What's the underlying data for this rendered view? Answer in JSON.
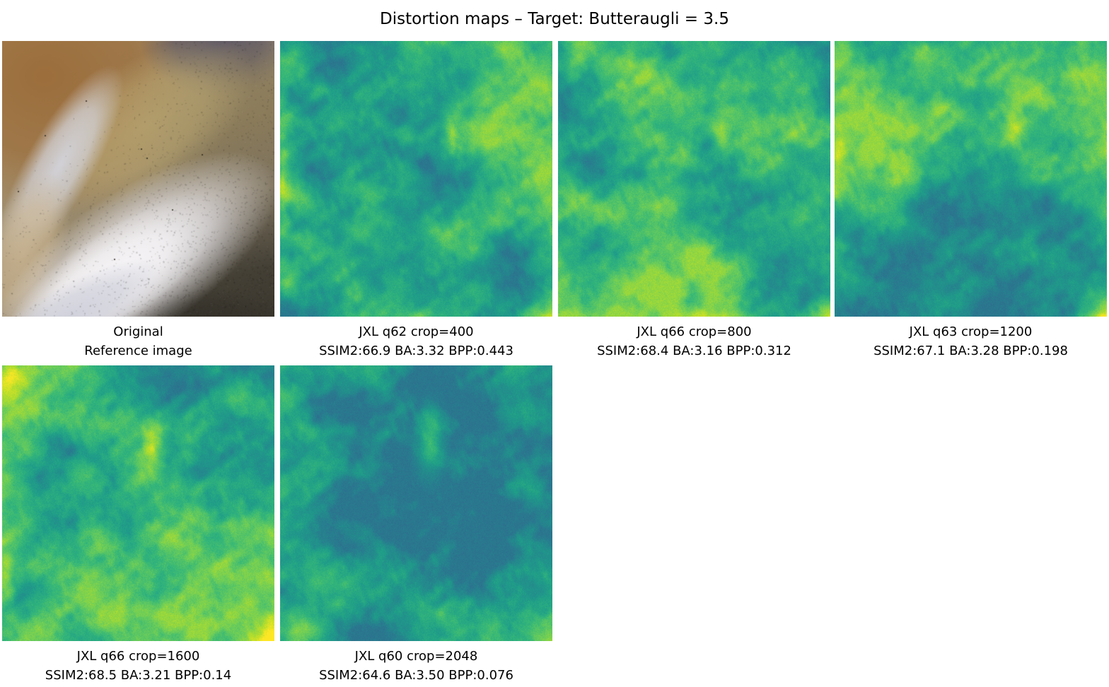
{
  "title": "Distortion maps – Target: Butteraugli = 3.5",
  "panels": [
    {
      "id": "original",
      "kind": "photo",
      "caption_line1": "Original",
      "caption_line2": "Reference image"
    },
    {
      "id": "jxl-q62-crop400",
      "kind": "heatmap",
      "caption_line1": "JXL q62 crop=400",
      "caption_line2": "SSIM2:66.9 BA:3.32 BPP:0.443",
      "metrics": {
        "codec": "JXL",
        "quality": 62,
        "crop": 400,
        "ssim2": 66.9,
        "butteraugli": 3.32,
        "bpp": 0.443
      },
      "render": {
        "seed": 21,
        "hotspots": [
          [
            1.02,
            1.04,
            0.2,
            0.2,
            0.62
          ],
          [
            0.01,
            0.5,
            0.045,
            0.55,
            0.16
          ],
          [
            0.02,
            0.88,
            0.1,
            0.12,
            0.2
          ],
          [
            0.63,
            0.33,
            0.06,
            0.16,
            0.22
          ],
          [
            0.45,
            1.0,
            0.18,
            0.07,
            0.14
          ]
        ]
      }
    },
    {
      "id": "jxl-q66-crop800",
      "kind": "heatmap",
      "caption_line1": "JXL q66 crop=800",
      "caption_line2": "SSIM2:68.4 BA:3.16 BPP:0.312",
      "metrics": {
        "codec": "JXL",
        "quality": 66,
        "crop": 800,
        "ssim2": 68.4,
        "butteraugli": 3.16,
        "bpp": 0.312
      },
      "render": {
        "seed": 34,
        "hotspots": [
          [
            1.02,
            1.03,
            0.15,
            0.15,
            0.5
          ],
          [
            0.6,
            0.32,
            0.07,
            0.18,
            0.24
          ],
          [
            0.07,
            0.06,
            0.1,
            0.1,
            0.14
          ],
          [
            0.55,
            1.02,
            0.22,
            0.08,
            0.14
          ],
          [
            0.0,
            0.3,
            0.04,
            0.3,
            0.1
          ]
        ]
      }
    },
    {
      "id": "jxl-q63-crop1200",
      "kind": "heatmap",
      "caption_line1": "JXL q63 crop=1200",
      "caption_line2": "SSIM2:67.1 BA:3.28 BPP:0.198",
      "metrics": {
        "codec": "JXL",
        "quality": 63,
        "crop": 1200,
        "ssim2": 67.1,
        "butteraugli": 3.28,
        "bpp": 0.198
      },
      "render": {
        "seed": 47,
        "hotspots": [
          [
            1.03,
            1.04,
            0.22,
            0.22,
            0.65
          ],
          [
            0.66,
            0.3,
            0.07,
            0.17,
            0.26
          ],
          [
            0.01,
            0.42,
            0.06,
            0.25,
            0.18
          ],
          [
            0.33,
            0.02,
            0.14,
            0.08,
            0.13
          ],
          [
            0.9,
            0.12,
            0.1,
            0.1,
            0.12
          ]
        ]
      }
    },
    {
      "id": "jxl-q66-crop1600",
      "kind": "heatmap",
      "caption_line1": "JXL q66 crop=1600",
      "caption_line2": "SSIM2:68.5 BA:3.21 BPP:0.14",
      "metrics": {
        "codec": "JXL",
        "quality": 66,
        "crop": 1600,
        "ssim2": 68.5,
        "butteraugli": 3.21,
        "bpp": 0.14
      },
      "render": {
        "seed": 58,
        "hotspots": [
          [
            1.02,
            1.03,
            0.18,
            0.18,
            0.55
          ],
          [
            0.55,
            0.3,
            0.08,
            0.2,
            0.3
          ],
          [
            0.03,
            0.03,
            0.13,
            0.13,
            0.22
          ],
          [
            0.01,
            0.8,
            0.07,
            0.2,
            0.16
          ],
          [
            0.35,
            0.6,
            0.1,
            0.1,
            0.12
          ]
        ]
      }
    },
    {
      "id": "jxl-q60-crop2048",
      "kind": "heatmap",
      "caption_line1": "JXL q60 crop=2048",
      "caption_line2": "SSIM2:64.6 BA:3.50 BPP:0.076",
      "metrics": {
        "codec": "JXL",
        "quality": 60,
        "crop": 2048,
        "ssim2": 64.6,
        "butteraugli": 3.5,
        "bpp": 0.076
      },
      "render": {
        "seed": 71,
        "hotspots": [
          [
            1.03,
            1.03,
            0.2,
            0.2,
            0.62
          ],
          [
            0.55,
            0.28,
            0.09,
            0.2,
            0.3
          ],
          [
            0.06,
            0.96,
            0.16,
            0.12,
            0.26
          ],
          [
            0.33,
            0.02,
            0.13,
            0.08,
            0.14
          ],
          [
            0.01,
            0.5,
            0.05,
            0.25,
            0.12
          ]
        ]
      }
    }
  ],
  "chart_data": {
    "type": "heatmap",
    "title": "Distortion maps – Target: Butteraugli = 3.5",
    "target": {
      "metric": "Butteraugli",
      "value": 3.5
    },
    "colormap": "viridis",
    "grid": {
      "rows": 2,
      "cols": 4,
      "occupied_panels": 6
    },
    "panels": [
      {
        "label": "Original",
        "sublabel": "Reference image",
        "kind": "reference"
      },
      {
        "label": "JXL q62 crop=400",
        "codec": "JXL",
        "quality": 62,
        "crop": 400,
        "ssim2": 66.9,
        "butteraugli": 3.32,
        "bpp": 0.443
      },
      {
        "label": "JXL q66 crop=800",
        "codec": "JXL",
        "quality": 66,
        "crop": 800,
        "ssim2": 68.4,
        "butteraugli": 3.16,
        "bpp": 0.312
      },
      {
        "label": "JXL q63 crop=1200",
        "codec": "JXL",
        "quality": 63,
        "crop": 1200,
        "ssim2": 67.1,
        "butteraugli": 3.28,
        "bpp": 0.198
      },
      {
        "label": "JXL q66 crop=1600",
        "codec": "JXL",
        "quality": 66,
        "crop": 1600,
        "ssim2": 68.5,
        "butteraugli": 3.21,
        "bpp": 0.14
      },
      {
        "label": "JXL q60 crop=2048",
        "codec": "JXL",
        "quality": 60,
        "crop": 2048,
        "ssim2": 64.6,
        "butteraugli": 3.5,
        "bpp": 0.076
      }
    ]
  },
  "render": {
    "colormap_stops": [
      "#440154",
      "#482878",
      "#3e4989",
      "#31688e",
      "#26828e",
      "#1f9e89",
      "#35b779",
      "#6ece58",
      "#b5de2b",
      "#fde725"
    ],
    "value_range": [
      0.4,
      0.84
    ],
    "photo_palette": {
      "base_top": "#b39f77",
      "base_mid": "#93856b",
      "base_bottom": "#5a554c",
      "brown_top_left": "#9c6e3c",
      "dark_blob": "#5c5765",
      "olive_top_right": "#8b7b57",
      "tan_wedge": "#bba873",
      "grey_band": "#d4d5dd",
      "tan_band": "#cdb793",
      "olive_right": "#7c7260",
      "shadow_br": "#343129",
      "shadow_bottom": "#2e2c28",
      "white_form": "#e9e7ec",
      "white_core": "#f7f5f7",
      "blue_shade": "#c9cbd7",
      "speckle_dark": "#191814",
      "speckle_light": "#ffffff"
    }
  }
}
